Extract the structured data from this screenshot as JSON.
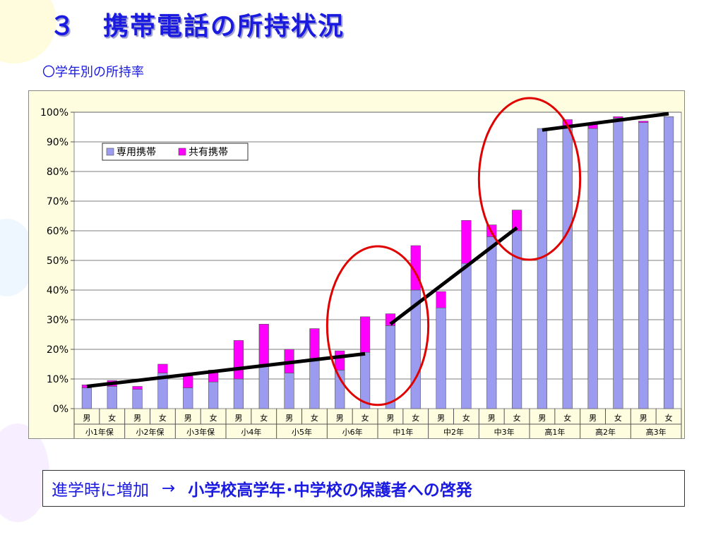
{
  "slide": {
    "title": "３　携帯電話の所持状況",
    "subtitle": "〇学年別の所持率",
    "message_lead": "進学時に増加",
    "message_arrow": "→",
    "message_emphasis": "小学校高学年･中学校の保護者への啓発"
  },
  "colors": {
    "dedicated": "#9b9bef",
    "shared": "#ff00ff",
    "plot_bg": "#ffffff",
    "frame_bg": "#fffde0",
    "trend": "#000000",
    "circle": "#e00000",
    "title": "#1a1ae0"
  },
  "chart_data": {
    "type": "bar",
    "stacked": true,
    "categories": [
      "男",
      "女",
      "男",
      "女",
      "男",
      "女",
      "男",
      "女",
      "男",
      "女",
      "男",
      "女",
      "男",
      "女",
      "男",
      "女",
      "男",
      "女",
      "男",
      "女",
      "男",
      "女",
      "男",
      "女"
    ],
    "groups": [
      "小1年保",
      "小2年保",
      "小3年保",
      "小4年",
      "小5年",
      "小6年",
      "中1年",
      "中2年",
      "中3年",
      "高1年",
      "高2年",
      "高3年"
    ],
    "series": [
      {
        "name": "専用携帯",
        "values": [
          7,
          7.5,
          6.5,
          12,
          7,
          9,
          10,
          15,
          12,
          17,
          13,
          19,
          28,
          40,
          34,
          49,
          58,
          60,
          94.5,
          95.5,
          94.5,
          98,
          96.5,
          98.5
        ]
      },
      {
        "name": "共有携帯",
        "values": [
          1,
          2,
          1,
          3,
          4,
          4,
          13,
          13.5,
          8,
          10,
          6.5,
          12,
          4,
          15,
          5.5,
          14.5,
          4,
          7,
          0,
          2,
          1.5,
          0.5,
          0.5,
          0
        ]
      }
    ],
    "y_ticks": [
      "0%",
      "10%",
      "20%",
      "30%",
      "40%",
      "50%",
      "60%",
      "70%",
      "80%",
      "90%",
      "100%"
    ],
    "ylim": [
      0,
      100
    ],
    "grid": true,
    "legend": "top-left",
    "trend_lines": [
      {
        "from": [
          0,
          7.5
        ],
        "to": [
          11,
          18.5
        ]
      },
      {
        "from": [
          12,
          28.5
        ],
        "to": [
          17,
          61
        ]
      },
      {
        "from": [
          18,
          94
        ],
        "to": [
          23,
          99.5
        ]
      }
    ],
    "highlight_groups": [
      "小6年",
      "中1年",
      "中3年",
      "高1年"
    ]
  }
}
